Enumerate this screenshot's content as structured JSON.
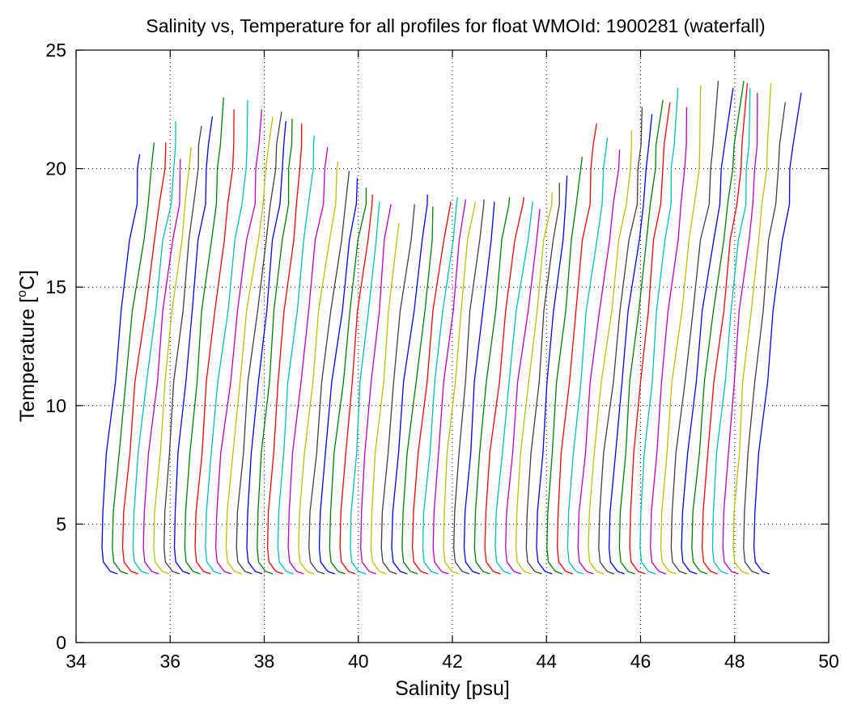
{
  "chart_data": {
    "type": "line",
    "title": "Salinity vs, Temperature for all profiles for float WMOId: 1900281 (waterfall)",
    "xlabel": "Salinity [psu]",
    "ylabel_main": "Temperature [",
    "ylabel_sup": "o",
    "ylabel_end": "C]",
    "xlim": [
      34,
      50
    ],
    "ylim": [
      0,
      25
    ],
    "xticks": [
      34,
      36,
      38,
      40,
      42,
      44,
      46,
      48,
      50
    ],
    "yticks": [
      0,
      5,
      10,
      15,
      20,
      25
    ],
    "grid": true,
    "legend": "none",
    "color_cycle": [
      "#0000ff",
      "#008000",
      "#ff0000",
      "#00bfbf",
      "#bf00bf",
      "#bfbf00",
      "#404040"
    ],
    "profile_count": 64,
    "first_offset": 34.55,
    "offset_step": 0.22,
    "profile_shape": [
      [
        0.33,
        2.9
      ],
      [
        0.18,
        3.0
      ],
      [
        0.03,
        3.4
      ],
      [
        0.0,
        4.0
      ],
      [
        0.02,
        5.5
      ],
      [
        0.12,
        8.0
      ],
      [
        0.26,
        11.0
      ],
      [
        0.42,
        14.0
      ],
      [
        0.6,
        17.0
      ],
      [
        0.72,
        18.5
      ],
      [
        0.78,
        20.0
      ],
      [
        0.82,
        21.0
      ]
    ],
    "top_temperatures": [
      20.6,
      21.1,
      21.1,
      22.0,
      20.4,
      20.9,
      21.8,
      22.2,
      23.0,
      22.5,
      22.9,
      22.5,
      22.2,
      22.4,
      22.0,
      22.1,
      21.9,
      21.4,
      20.9,
      20.3,
      19.9,
      19.6,
      19.2,
      18.9,
      18.6,
      18.5,
      17.7,
      18.5,
      18.9,
      18.4,
      18.6,
      18.8,
      18.7,
      18.6,
      18.7,
      18.6,
      18.8,
      18.8,
      18.6,
      18.3,
      19.0,
      19.4,
      19.7,
      20.5,
      21.9,
      21.3,
      20.8,
      21.6,
      22.6,
      22.3,
      22.9,
      22.8,
      23.4,
      22.6,
      23.5,
      23.7,
      23.4,
      23.7,
      23.6,
      23.4,
      23.2,
      23.6,
      22.8,
      23.2
    ]
  }
}
